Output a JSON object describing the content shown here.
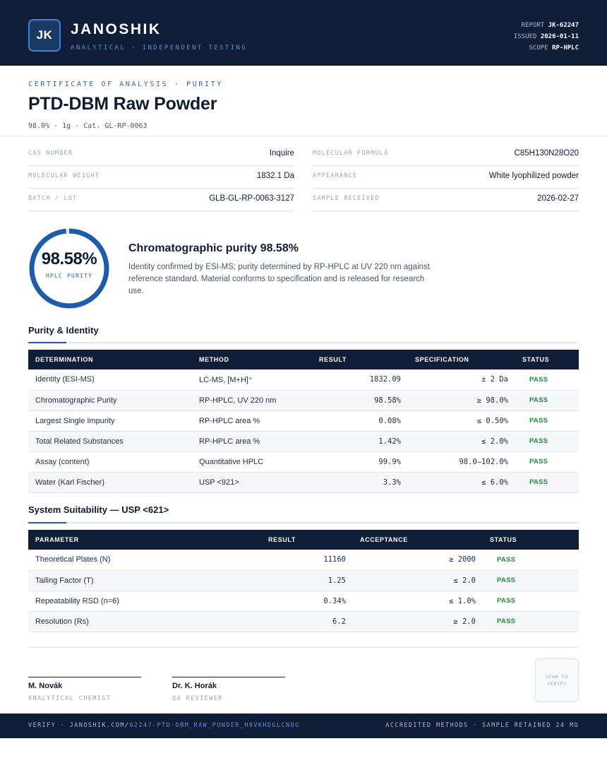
{
  "header": {
    "logo_initials": "JK",
    "brand_name": "JANOSHIK",
    "brand_tagline": "ANALYTICAL · INDEPENDENT TESTING",
    "meta": [
      {
        "label": "REPORT",
        "value": "JK-62247"
      },
      {
        "label": "ISSUED",
        "value": "2026-01-11"
      },
      {
        "label": "SCOPE",
        "value": "RP-HPLC"
      }
    ]
  },
  "document": {
    "eyebrow": "CERTIFICATE OF ANALYSIS · PURITY",
    "title": "PTD-DBM Raw Powder",
    "subtitle": "98.0% · 1g  ·  Cat. GL-RP-0063"
  },
  "info": {
    "left": [
      {
        "label": "CAS NUMBER",
        "value": "Inquire"
      },
      {
        "label": "MOLECULAR WEIGHT",
        "value": "1832.1 Da"
      },
      {
        "label": "BATCH / LOT",
        "value": "GLB-GL-RP-0063-3127"
      }
    ],
    "right": [
      {
        "label": "MOLECULAR FORMULA",
        "value": "C85H130N28O20"
      },
      {
        "label": "APPEARANCE",
        "value": "White lyophilized powder"
      },
      {
        "label": "SAMPLE RECEIVED",
        "value": "2026-02-27"
      }
    ]
  },
  "purity": {
    "value_text": "98.58%",
    "fraction": 0.9858,
    "label": "HPLC PURITY",
    "summary_title": "Chromatographic purity 98.58%",
    "summary_text": "Identity confirmed by ESI-MS; purity determined by RP-HPLC at UV 220 nm against reference standard. Material conforms to specification and is released for research use."
  },
  "purity_identity": {
    "section_title": "Purity & Identity",
    "headers": [
      "DETERMINATION",
      "METHOD",
      "RESULT",
      "SPECIFICATION",
      "STATUS"
    ],
    "rows": [
      {
        "determination": "Identity (ESI-MS)",
        "method": "LC-MS, [M+H]⁺",
        "result": "1832.09",
        "spec": "± 2 Da",
        "status": "PASS"
      },
      {
        "determination": "Chromatographic Purity",
        "method": "RP-HPLC, UV 220 nm",
        "result": "98.58%",
        "spec": "≥ 98.0%",
        "status": "PASS"
      },
      {
        "determination": "Largest Single Impurity",
        "method": "RP-HPLC area %",
        "result": "0.08%",
        "spec": "≤ 0.50%",
        "status": "PASS"
      },
      {
        "determination": "Total Related Substances",
        "method": "RP-HPLC area %",
        "result": "1.42%",
        "spec": "≤ 2.0%",
        "status": "PASS"
      },
      {
        "determination": "Assay (content)",
        "method": "Quantitative HPLC",
        "result": "99.9%",
        "spec": "98.0–102.0%",
        "status": "PASS"
      },
      {
        "determination": "Water (Karl Fischer)",
        "method": "USP <921>",
        "result": "3.3%",
        "spec": "≤ 6.0%",
        "status": "PASS"
      }
    ]
  },
  "system_suitability": {
    "section_title": "System Suitability — USP <621>",
    "headers": [
      "PARAMETER",
      "RESULT",
      "ACCEPTANCE",
      "STATUS"
    ],
    "rows": [
      {
        "parameter": "Theoretical Plates (N)",
        "result": "11160",
        "acceptance": "≥ 2000",
        "status": "PASS"
      },
      {
        "parameter": "Tailing Factor (T)",
        "result": "1.25",
        "acceptance": "≤ 2.0",
        "status": "PASS"
      },
      {
        "parameter": "Repeatability RSD (n=6)",
        "result": "0.34%",
        "acceptance": "≤ 1.0%",
        "status": "PASS"
      },
      {
        "parameter": "Resolution (Rs)",
        "result": "6.2",
        "acceptance": "≥ 2.0",
        "status": "PASS"
      }
    ]
  },
  "signatures": [
    {
      "name": "M. Novák",
      "role": "ANALYTICAL CHEMIST"
    },
    {
      "name": "Dr. K. Horák",
      "role": "QA REVIEWER"
    }
  ],
  "qr_label": "SCAN TO VERIFY",
  "footer": {
    "verify_prefix": "VERIFY · JANOSHIK.COM/",
    "verify_path": "62247-PTD-DBM_RAW_POWDER_H8VKHDGLCN8G",
    "right_text": "ACCREDITED METHODS · SAMPLE RETAINED 24 MO"
  },
  "colors": {
    "navy": "#0f1d36",
    "accent_blue": "#1f5ba8",
    "pass_green": "#1e8a3c"
  }
}
